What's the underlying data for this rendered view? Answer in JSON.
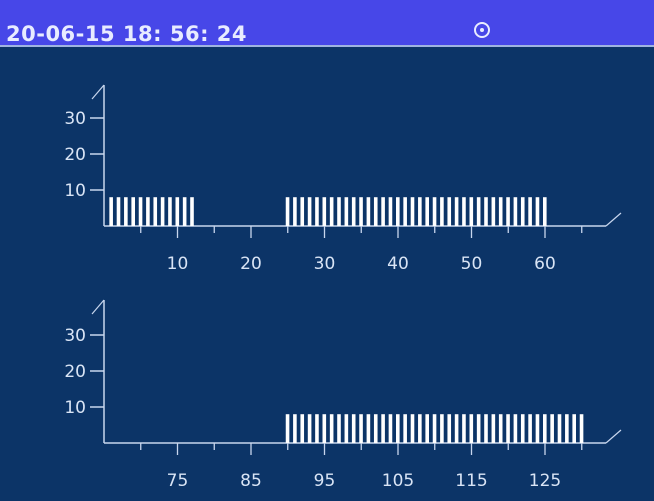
{
  "header": {
    "datetime": "20-06-15  18:  56:  24",
    "status_icon": "target-circle-icon"
  },
  "colors": {
    "header": "#4747e8",
    "background": "#0c3467",
    "bars": "#ffffff",
    "axis": "#c8d6ee"
  },
  "chart_data": [
    {
      "type": "bar",
      "x_ticks": [
        "10",
        "20",
        "30",
        "40",
        "50",
        "60"
      ],
      "x_tick_values": [
        10,
        20,
        30,
        40,
        50,
        60
      ],
      "y_ticks": [
        "10",
        "20",
        "30"
      ],
      "y_tick_values": [
        10,
        20,
        30
      ],
      "xlim": [
        0,
        68
      ],
      "ylim": [
        0,
        38
      ],
      "bar_segments": [
        {
          "from": 1,
          "to": 12,
          "value": 8
        },
        {
          "from": 25,
          "to": 60,
          "value": 8
        }
      ]
    },
    {
      "type": "bar",
      "x_ticks": [
        "75",
        "85",
        "95",
        "105",
        "115",
        "125"
      ],
      "x_tick_values": [
        75,
        85,
        95,
        105,
        115,
        125
      ],
      "y_ticks": [
        "10",
        "20",
        "30"
      ],
      "y_tick_values": [
        10,
        20,
        30
      ],
      "xlim": [
        65,
        133
      ],
      "ylim": [
        0,
        38
      ],
      "bar_segments": [
        {
          "from": 90,
          "to": 130,
          "value": 8
        }
      ]
    }
  ]
}
